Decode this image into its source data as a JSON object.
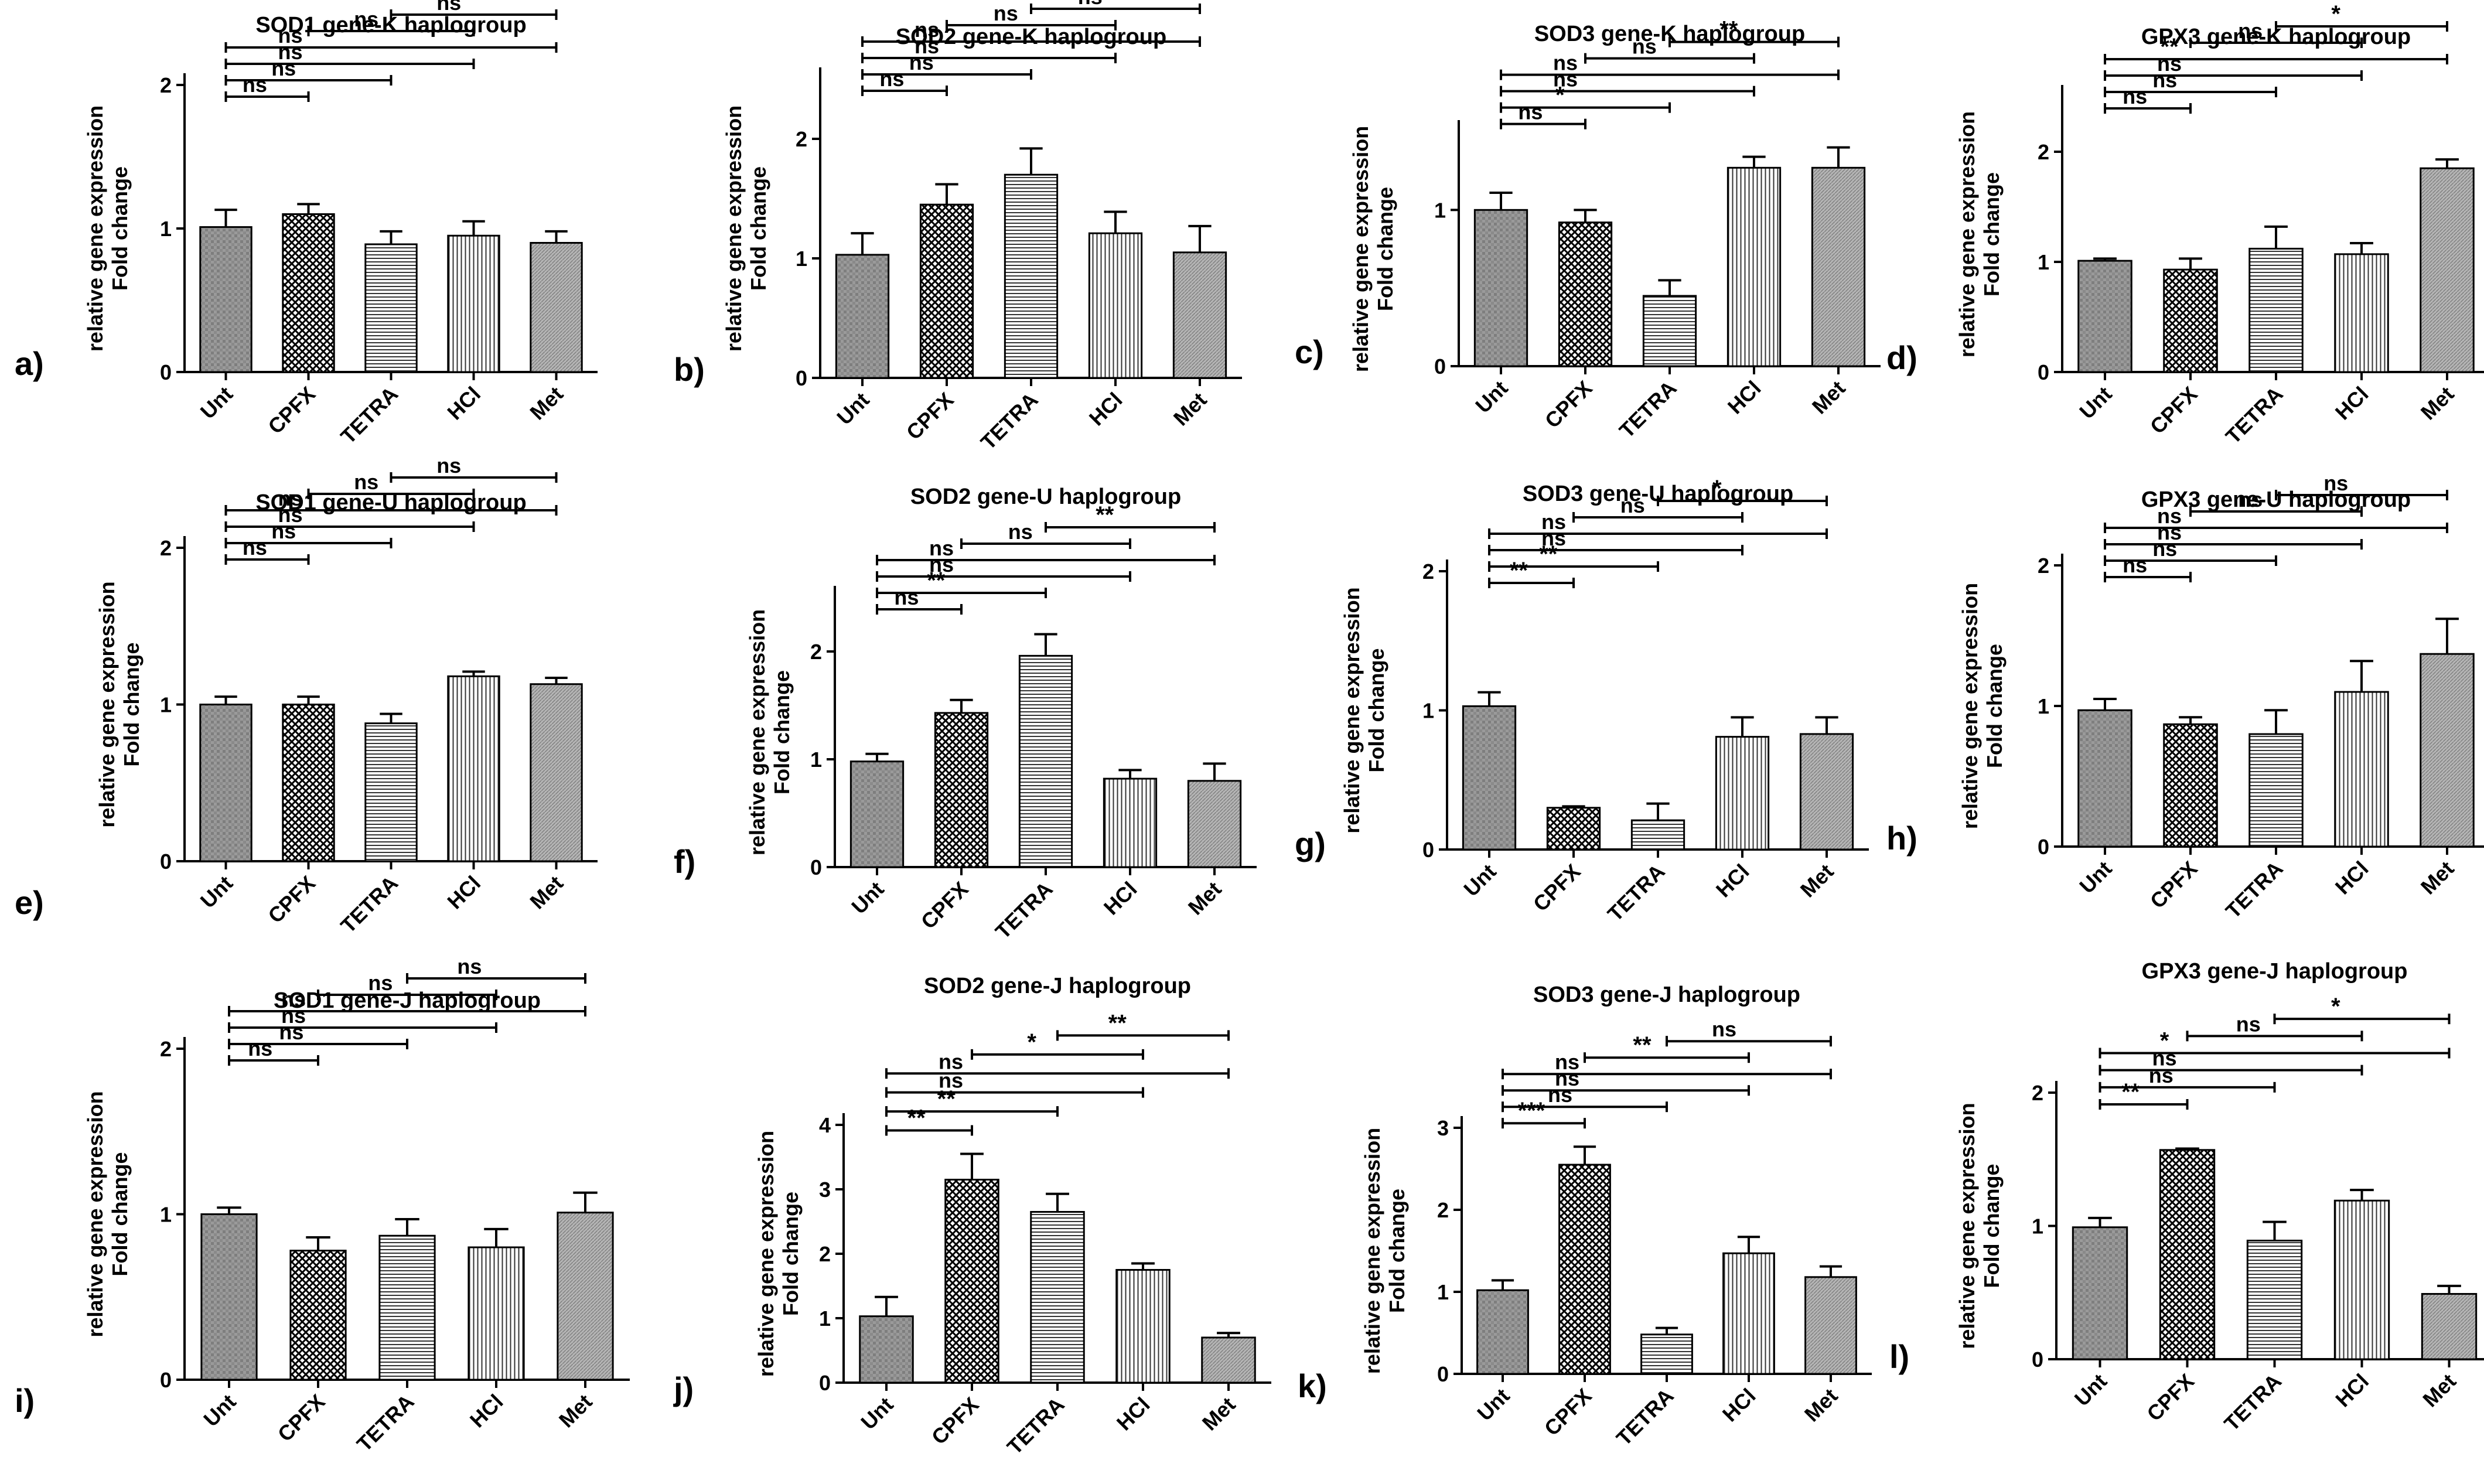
{
  "chart_data": [
    {
      "id": "a",
      "letter": "a)",
      "type": "bar",
      "title": "SOD1 gene-K haplogroup",
      "ylabel": [
        "relative gene expression",
        "Fold change"
      ],
      "categories": [
        "Unt",
        "CPFX",
        "TETRA",
        "HCl",
        "Met"
      ],
      "values": [
        1.01,
        1.1,
        0.89,
        0.95,
        0.9
      ],
      "errors": [
        0.12,
        0.07,
        0.09,
        0.1,
        0.08
      ],
      "ylim": [
        0,
        2
      ],
      "yticks": [
        "0",
        "1",
        "2"
      ],
      "ytick_values": [
        0,
        1,
        2
      ],
      "comparisons": [
        {
          "a": 0,
          "b": 1,
          "label": "ns"
        },
        {
          "a": 0,
          "b": 2,
          "label": "ns"
        },
        {
          "a": 0,
          "b": 3,
          "label": "ns"
        },
        {
          "a": 0,
          "b": 4,
          "label": "ns"
        },
        {
          "a": 1,
          "b": 3,
          "label": "ns"
        },
        {
          "a": 2,
          "b": 4,
          "label": "ns"
        }
      ]
    },
    {
      "id": "b",
      "letter": "b)",
      "type": "bar",
      "title": "SOD2 gene-K haplogroup",
      "ylabel": [
        "relative gene expression",
        "Fold change"
      ],
      "categories": [
        "Unt",
        "CPFX",
        "TETRA",
        "HCl",
        "Met"
      ],
      "values": [
        1.03,
        1.45,
        1.7,
        1.21,
        1.05
      ],
      "errors": [
        0.18,
        0.17,
        0.22,
        0.18,
        0.22
      ],
      "ylim": [
        0,
        2.5
      ],
      "yticks": [
        "0",
        "1",
        "2"
      ],
      "ytick_values": [
        0,
        1,
        2
      ],
      "comparisons": [
        {
          "a": 0,
          "b": 1,
          "label": "ns"
        },
        {
          "a": 0,
          "b": 2,
          "label": "ns"
        },
        {
          "a": 0,
          "b": 3,
          "label": "ns"
        },
        {
          "a": 0,
          "b": 4,
          "label": "ns"
        },
        {
          "a": 1,
          "b": 3,
          "label": "ns"
        },
        {
          "a": 2,
          "b": 4,
          "label": "ns"
        }
      ]
    },
    {
      "id": "c",
      "letter": "c)",
      "type": "bar",
      "title": "SOD3 gene-K haplogroup",
      "ylabel": [
        "relative gene expression",
        "Fold change"
      ],
      "categories": [
        "Unt",
        "CPFX",
        "TETRA",
        "HCl",
        "Met"
      ],
      "values": [
        1.0,
        0.92,
        0.45,
        1.27,
        1.27
      ],
      "errors": [
        0.11,
        0.08,
        0.1,
        0.07,
        0.13
      ],
      "ylim": [
        0,
        1.5
      ],
      "yticks": [
        "0",
        "1"
      ],
      "ytick_values": [
        0,
        1
      ],
      "comparisons": [
        {
          "a": 0,
          "b": 1,
          "label": "ns"
        },
        {
          "a": 0,
          "b": 2,
          "label": "*"
        },
        {
          "a": 0,
          "b": 3,
          "label": "ns"
        },
        {
          "a": 0,
          "b": 4,
          "label": "ns"
        },
        {
          "a": 1,
          "b": 3,
          "label": "ns"
        },
        {
          "a": 2,
          "b": 4,
          "label": "**"
        }
      ]
    },
    {
      "id": "d",
      "letter": "d)",
      "type": "bar",
      "title": "GPX3 gene-K haplogroup",
      "ylabel": [
        "relative gene expression",
        "Fold change"
      ],
      "categories": [
        "Unt",
        "CPFX",
        "TETRA",
        "HCl",
        "Met"
      ],
      "values": [
        1.01,
        0.93,
        1.12,
        1.07,
        1.85
      ],
      "errors": [
        0.02,
        0.1,
        0.2,
        0.1,
        0.08
      ],
      "ylim": [
        0,
        2.5
      ],
      "yticks": [
        "0",
        "1",
        "2"
      ],
      "ytick_values": [
        0,
        1,
        2
      ],
      "comparisons": [
        {
          "a": 0,
          "b": 1,
          "label": "ns"
        },
        {
          "a": 0,
          "b": 2,
          "label": "ns"
        },
        {
          "a": 0,
          "b": 3,
          "label": "ns"
        },
        {
          "a": 0,
          "b": 4,
          "label": "**"
        },
        {
          "a": 1,
          "b": 3,
          "label": "ns"
        },
        {
          "a": 2,
          "b": 4,
          "label": "*"
        }
      ]
    },
    {
      "id": "e",
      "letter": "e)",
      "type": "bar",
      "title": "SOD1 gene-U haplogroup",
      "ylabel": [
        "relative gene expression",
        "Fold change"
      ],
      "categories": [
        "Unt",
        "CPFX",
        "TETRA",
        "HCl",
        "Met"
      ],
      "values": [
        1.0,
        1.0,
        0.88,
        1.18,
        1.13
      ],
      "errors": [
        0.05,
        0.05,
        0.06,
        0.03,
        0.04
      ],
      "ylim": [
        0,
        2
      ],
      "yticks": [
        "0",
        "1",
        "2"
      ],
      "ytick_values": [
        0,
        1,
        2
      ],
      "comparisons": [
        {
          "a": 0,
          "b": 1,
          "label": "ns"
        },
        {
          "a": 0,
          "b": 2,
          "label": "ns"
        },
        {
          "a": 0,
          "b": 3,
          "label": "ns"
        },
        {
          "a": 0,
          "b": 4,
          "label": "ns"
        },
        {
          "a": 1,
          "b": 3,
          "label": "ns"
        },
        {
          "a": 2,
          "b": 4,
          "label": "ns"
        }
      ]
    },
    {
      "id": "f",
      "letter": "f)",
      "type": "bar",
      "title": "SOD2 gene-U haplogroup",
      "ylabel": [
        "relative gene expression",
        "Fold change"
      ],
      "categories": [
        "Unt",
        "CPFX",
        "TETRA",
        "HCl",
        "Met"
      ],
      "values": [
        0.98,
        1.43,
        1.96,
        0.82,
        0.8
      ],
      "errors": [
        0.07,
        0.12,
        0.2,
        0.08,
        0.16
      ],
      "ylim": [
        0,
        2.5
      ],
      "yticks": [
        "0",
        "1",
        "2"
      ],
      "ytick_values": [
        0,
        1,
        2
      ],
      "comparisons": [
        {
          "a": 0,
          "b": 1,
          "label": "ns"
        },
        {
          "a": 0,
          "b": 2,
          "label": "**"
        },
        {
          "a": 0,
          "b": 3,
          "label": "ns"
        },
        {
          "a": 0,
          "b": 4,
          "label": "ns"
        },
        {
          "a": 1,
          "b": 3,
          "label": "ns"
        },
        {
          "a": 2,
          "b": 4,
          "label": "**"
        }
      ]
    },
    {
      "id": "g",
      "letter": "g)",
      "type": "bar",
      "title": "SOD3 gene-U haplogroup",
      "ylabel": [
        "relative gene expression",
        "Fold change"
      ],
      "categories": [
        "Unt",
        "CPFX",
        "TETRA",
        "HCl",
        "Met"
      ],
      "values": [
        1.03,
        0.3,
        0.21,
        0.81,
        0.83
      ],
      "errors": [
        0.1,
        0.01,
        0.12,
        0.14,
        0.12
      ],
      "ylim": [
        0,
        2
      ],
      "yticks": [
        "0",
        "1",
        "2"
      ],
      "ytick_values": [
        0,
        1,
        2
      ],
      "comparisons": [
        {
          "a": 0,
          "b": 1,
          "label": "**"
        },
        {
          "a": 0,
          "b": 2,
          "label": "**"
        },
        {
          "a": 0,
          "b": 3,
          "label": "ns"
        },
        {
          "a": 0,
          "b": 4,
          "label": "ns"
        },
        {
          "a": 1,
          "b": 3,
          "label": "ns"
        },
        {
          "a": 2,
          "b": 4,
          "label": "*"
        }
      ]
    },
    {
      "id": "h",
      "letter": "h)",
      "type": "bar",
      "title": "GPX3 gene-U haplogroup",
      "ylabel": [
        "relative gene expression",
        "Fold change"
      ],
      "categories": [
        "Unt",
        "CPFX",
        "TETRA",
        "HCl",
        "Met"
      ],
      "values": [
        0.97,
        0.87,
        0.8,
        1.1,
        1.37
      ],
      "errors": [
        0.08,
        0.05,
        0.17,
        0.22,
        0.25
      ],
      "ylim": [
        0,
        2
      ],
      "yticks": [
        "0",
        "1",
        "2"
      ],
      "ytick_values": [
        0,
        1,
        2
      ],
      "comparisons": [
        {
          "a": 0,
          "b": 1,
          "label": "ns"
        },
        {
          "a": 0,
          "b": 2,
          "label": "ns"
        },
        {
          "a": 0,
          "b": 3,
          "label": "ns"
        },
        {
          "a": 0,
          "b": 4,
          "label": "ns"
        },
        {
          "a": 1,
          "b": 3,
          "label": "ns"
        },
        {
          "a": 2,
          "b": 4,
          "label": "ns"
        }
      ]
    },
    {
      "id": "i",
      "letter": "i)",
      "type": "bar",
      "title": "SOD1 gene-J haplogroup",
      "ylabel": [
        "relative gene expression",
        "Fold change"
      ],
      "categories": [
        "Unt",
        "CPFX",
        "TETRA",
        "HCl",
        "Met"
      ],
      "values": [
        1.0,
        0.78,
        0.87,
        0.8,
        1.01
      ],
      "errors": [
        0.04,
        0.08,
        0.1,
        0.11,
        0.12
      ],
      "ylim": [
        0,
        2
      ],
      "yticks": [
        "0",
        "1",
        "2"
      ],
      "ytick_values": [
        0,
        1,
        2
      ],
      "comparisons": [
        {
          "a": 0,
          "b": 1,
          "label": "ns"
        },
        {
          "a": 0,
          "b": 2,
          "label": "ns"
        },
        {
          "a": 0,
          "b": 3,
          "label": "ns"
        },
        {
          "a": 0,
          "b": 4,
          "label": "ns"
        },
        {
          "a": 1,
          "b": 3,
          "label": "ns"
        },
        {
          "a": 2,
          "b": 4,
          "label": "ns"
        }
      ]
    },
    {
      "id": "j",
      "letter": "j)",
      "type": "bar",
      "title": "SOD2 gene-J haplogroup",
      "ylabel": [
        "relative gene expression",
        "Fold change"
      ],
      "categories": [
        "Unt",
        "CPFX",
        "TETRA",
        "HCl",
        "Met"
      ],
      "values": [
        1.03,
        3.15,
        2.65,
        1.75,
        0.7
      ],
      "errors": [
        0.3,
        0.4,
        0.28,
        0.1,
        0.07
      ],
      "ylim": [
        0,
        4
      ],
      "yticks": [
        "0",
        "1",
        "2",
        "3",
        "4"
      ],
      "ytick_values": [
        0,
        1,
        2,
        3,
        4
      ],
      "comparisons": [
        {
          "a": 0,
          "b": 1,
          "label": "**"
        },
        {
          "a": 0,
          "b": 2,
          "label": "**"
        },
        {
          "a": 0,
          "b": 3,
          "label": "ns"
        },
        {
          "a": 0,
          "b": 4,
          "label": "ns"
        },
        {
          "a": 1,
          "b": 3,
          "label": "*"
        },
        {
          "a": 2,
          "b": 4,
          "label": "**"
        }
      ]
    },
    {
      "id": "k",
      "letter": "k)",
      "type": "bar",
      "title": "SOD3 gene-J haplogroup",
      "ylabel": [
        "relative gene expression",
        "Fold change"
      ],
      "categories": [
        "Unt",
        "CPFX",
        "TETRA",
        "HCl",
        "Met"
      ],
      "values": [
        1.02,
        2.55,
        0.48,
        1.47,
        1.18
      ],
      "errors": [
        0.12,
        0.22,
        0.08,
        0.2,
        0.13
      ],
      "ylim": [
        0,
        3
      ],
      "yticks": [
        "0",
        "1",
        "2",
        "3"
      ],
      "ytick_values": [
        0,
        1,
        2,
        3
      ],
      "comparisons": [
        {
          "a": 0,
          "b": 1,
          "label": "***"
        },
        {
          "a": 0,
          "b": 2,
          "label": "ns"
        },
        {
          "a": 0,
          "b": 3,
          "label": "ns"
        },
        {
          "a": 0,
          "b": 4,
          "label": "ns"
        },
        {
          "a": 1,
          "b": 3,
          "label": "**"
        },
        {
          "a": 2,
          "b": 4,
          "label": "ns"
        }
      ]
    },
    {
      "id": "l",
      "letter": "l)",
      "type": "bar",
      "title": "GPX3 gene-J haplogroup",
      "ylabel": [
        "relative gene expression",
        "Fold change"
      ],
      "categories": [
        "Unt",
        "CPFX",
        "TETRA",
        "HCl",
        "Met"
      ],
      "values": [
        0.99,
        1.57,
        0.89,
        1.19,
        0.49
      ],
      "errors": [
        0.07,
        0.01,
        0.14,
        0.08,
        0.06
      ],
      "ylim": [
        0,
        2
      ],
      "yticks": [
        "0",
        "1",
        "2"
      ],
      "ytick_values": [
        0,
        1,
        2
      ],
      "comparisons": [
        {
          "a": 0,
          "b": 1,
          "label": "**"
        },
        {
          "a": 0,
          "b": 2,
          "label": "ns"
        },
        {
          "a": 0,
          "b": 3,
          "label": "ns"
        },
        {
          "a": 0,
          "b": 4,
          "label": "*"
        },
        {
          "a": 1,
          "b": 3,
          "label": "ns"
        },
        {
          "a": 2,
          "b": 4,
          "label": "*"
        }
      ]
    }
  ]
}
